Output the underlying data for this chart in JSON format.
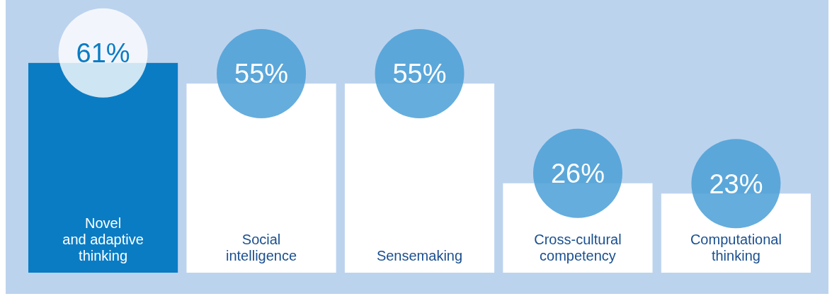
{
  "chart_data": {
    "type": "bar",
    "relative": false,
    "categories": [
      "Novel\nand adaptive\nthinking",
      "Social\nintelligence",
      "Sensemaking",
      "Cross-cultural\ncompetency",
      "Computational\nthinking"
    ],
    "values": [
      61,
      55,
      55,
      26,
      23
    ],
    "value_labels": [
      "61%",
      "55%",
      "55%",
      "26%",
      "23%"
    ],
    "colors": [
      "#0a7cc4",
      "#ffffff",
      "#ffffff",
      "#ffffff",
      "#ffffff"
    ]
  }
}
